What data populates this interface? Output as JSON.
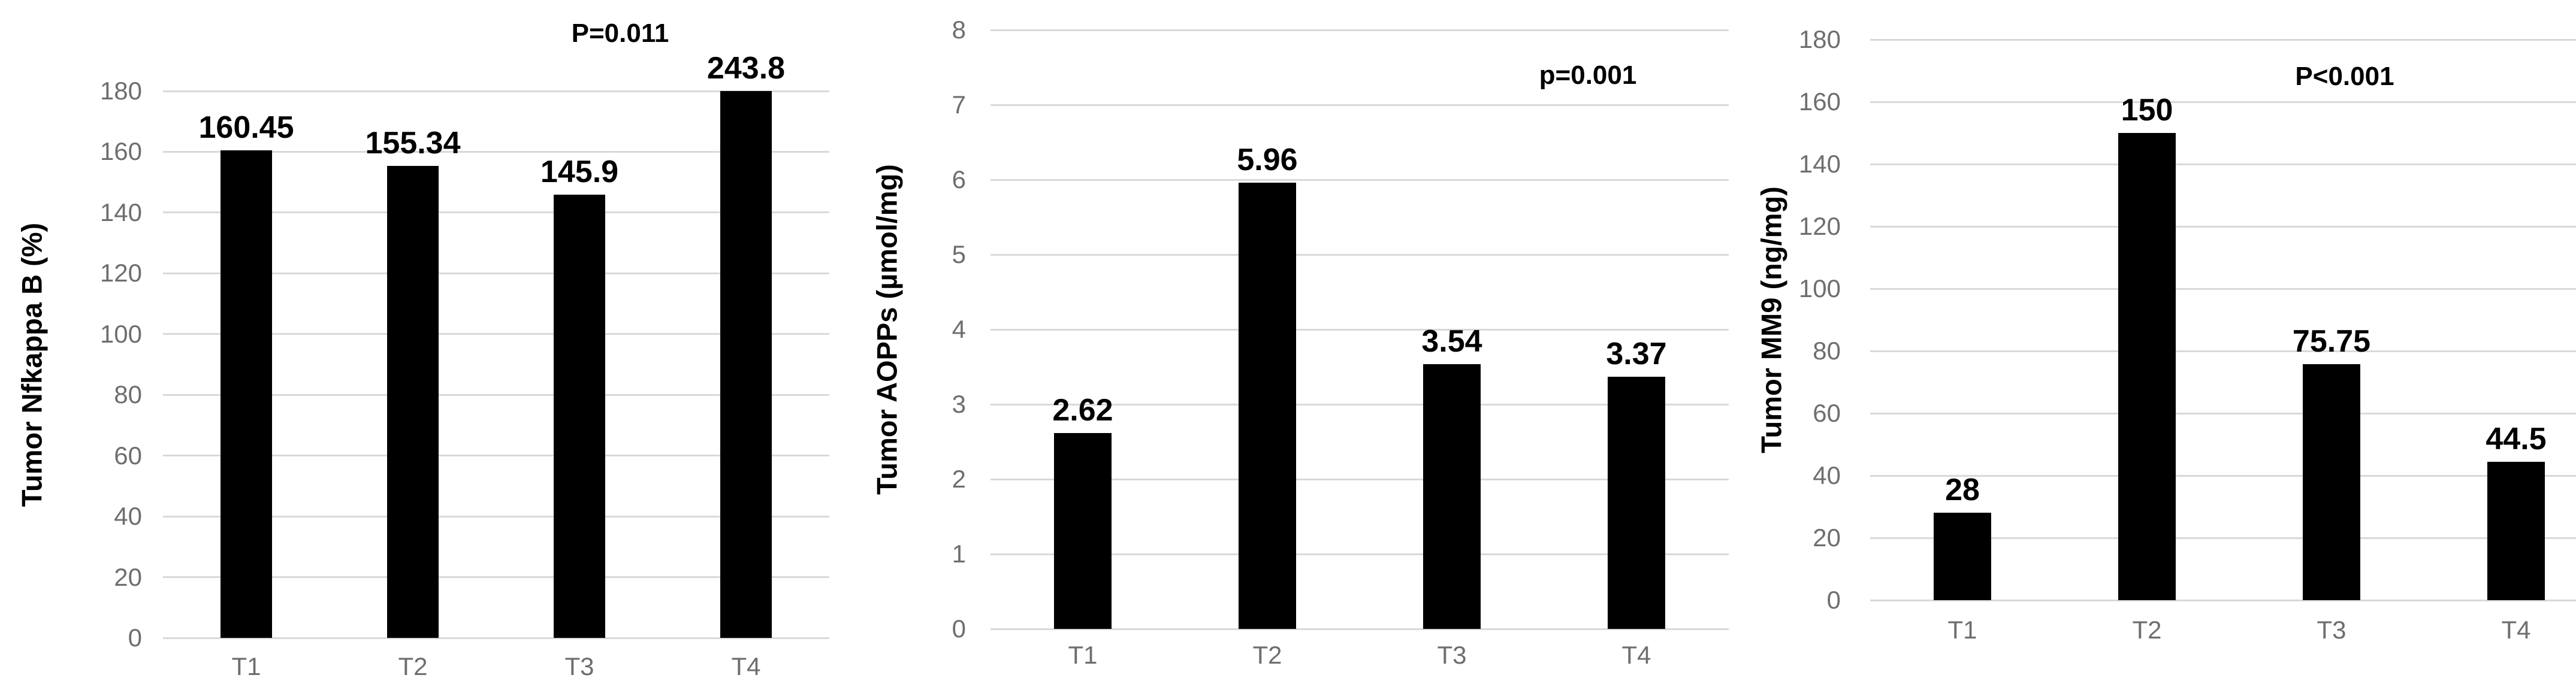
{
  "figure": {
    "background": "#ffffff",
    "colors": {
      "bar_fill": "#000000",
      "gridline": "#d9d9d9",
      "tick_label": "#6e6e6e",
      "category_label": "#6e6e6e",
      "value_label": "#000000",
      "axis_title": "#000000",
      "annotation": "#000000"
    }
  },
  "chart_data": [
    {
      "type": "bar",
      "title": "",
      "ylabel": "Tumor Nfkappa B (%)",
      "xlabel": "",
      "categories": [
        "T1",
        "T2",
        "T3",
        "T4"
      ],
      "values": [
        160.45,
        155.34,
        145.9,
        243.8
      ],
      "value_labels": [
        "160.45",
        "155.34",
        "145.9",
        "243.8"
      ],
      "ylim": [
        0,
        180
      ],
      "ytick_step": 20,
      "ytick_labels": [
        "0",
        "20",
        "40",
        "60",
        "80",
        "100",
        "120",
        "140",
        "160",
        "180"
      ],
      "grid": true,
      "legend": "none",
      "annotation": "P=0.011",
      "bars_clipped_at_ymax": true
    },
    {
      "type": "bar",
      "title": "",
      "ylabel": "Tumor AOPPs (µmol/mg)",
      "xlabel": "",
      "categories": [
        "T1",
        "T2",
        "T3",
        "T4"
      ],
      "values": [
        2.62,
        5.96,
        3.54,
        3.37
      ],
      "value_labels": [
        "2.62",
        "5.96",
        "3.54",
        "3.37"
      ],
      "ylim": [
        0,
        8
      ],
      "ytick_step": 1,
      "ytick_labels": [
        "0",
        "1",
        "2",
        "3",
        "4",
        "5",
        "6",
        "7",
        "8"
      ],
      "grid": true,
      "legend": "none",
      "annotation": "p=0.001",
      "bars_clipped_at_ymax": false
    },
    {
      "type": "bar",
      "title": "",
      "ylabel": "Tumor MM9 (ng/mg)",
      "xlabel": "",
      "categories": [
        "T1",
        "T2",
        "T3",
        "T4"
      ],
      "values": [
        28,
        150,
        75.75,
        44.5
      ],
      "value_labels": [
        "28",
        "150",
        "75.75",
        "44.5"
      ],
      "ylim": [
        0,
        180
      ],
      "ytick_step": 20,
      "ytick_labels": [
        "0",
        "20",
        "40",
        "60",
        "80",
        "100",
        "120",
        "140",
        "160",
        "180"
      ],
      "grid": true,
      "legend": "none",
      "annotation": "P<0.001",
      "bars_clipped_at_ymax": false
    }
  ]
}
